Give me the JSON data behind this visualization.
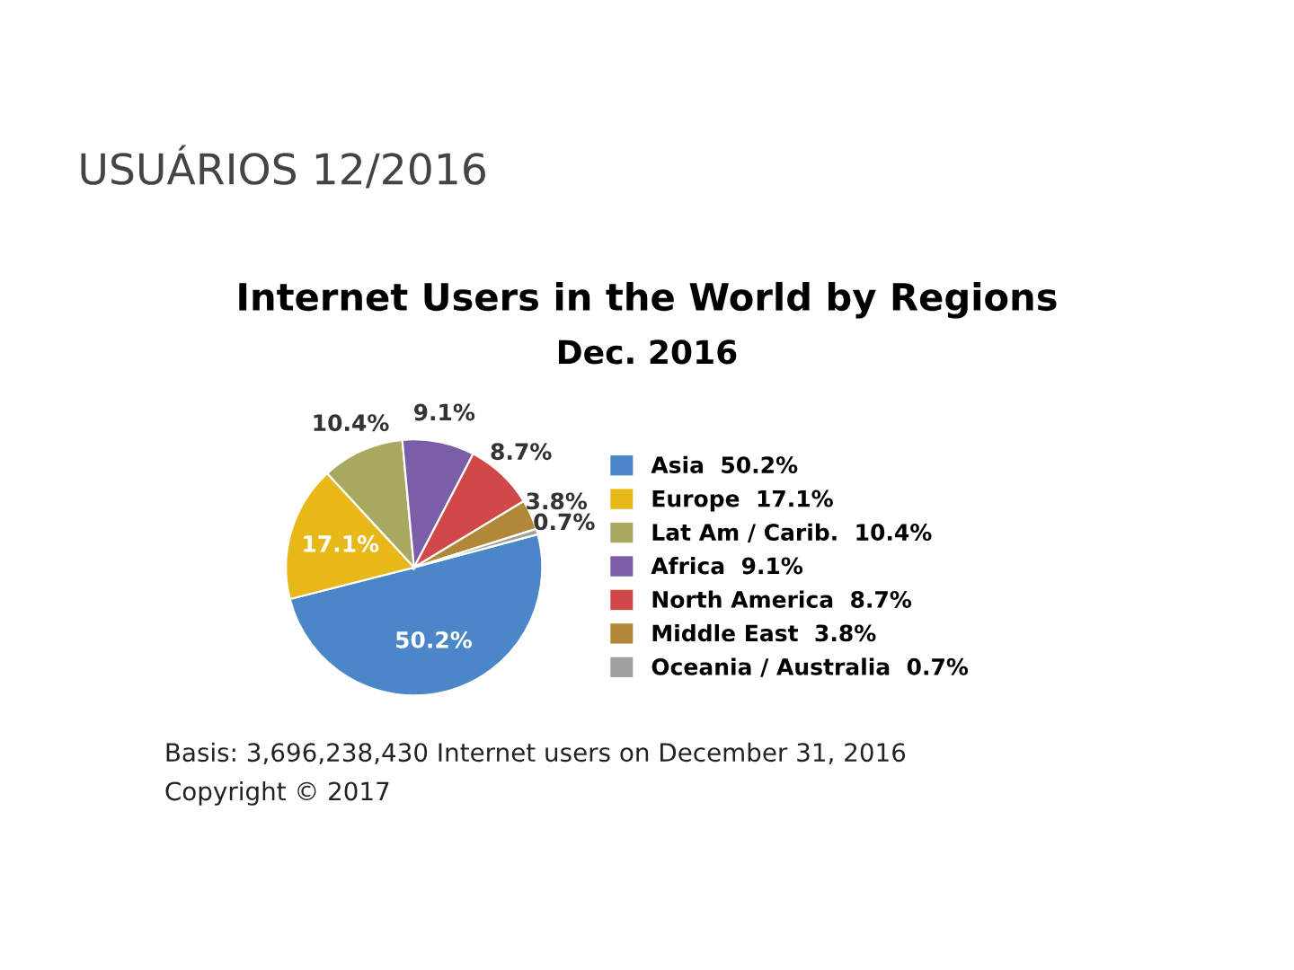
{
  "chart_data": {
    "type": "pie",
    "title": "Internet Users in the World by Regions",
    "subtitle": "Dec. 2016",
    "categories": [
      "Asia",
      "Europe",
      "Lat Am / Carib.",
      "Africa",
      "North America",
      "Middle East",
      "Oceania / Australia"
    ],
    "values": [
      50.2,
      17.1,
      10.4,
      9.1,
      8.7,
      3.8,
      0.7
    ],
    "value_labels": [
      "50.2%",
      "17.1%",
      "10.4%",
      "9.1%",
      "8.7%",
      "3.8%",
      "0.7%"
    ],
    "colors": [
      "#4a86c8",
      "#e8b818",
      "#a8a860",
      "#7b5ea7",
      "#d04848",
      "#b08838",
      "#a0a0a0"
    ],
    "legend": "right",
    "annotations": [
      "USUÁRIOS 12/2016",
      "Basis: 3,696,238,430 Internet users on December 31, 2016",
      "Copyright © 2017"
    ]
  }
}
